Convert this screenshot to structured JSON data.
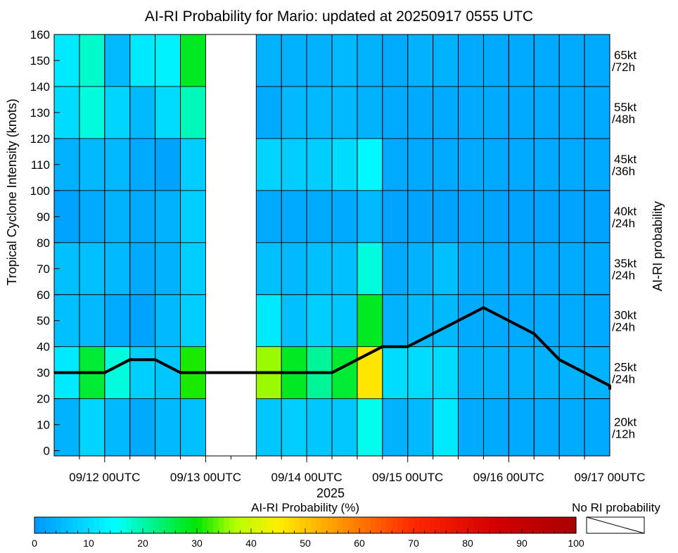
{
  "chart_data": {
    "type": "heatmap",
    "title": "AI-RI Probability for Mario: updated at 20250917 0555 UTC",
    "ylabel": "Tropical Cyclone Intensity (knots)",
    "xlabel": "2025",
    "right_label": "AI-RI probability",
    "ylim": [
      -2,
      160
    ],
    "yticks": [
      0,
      10,
      20,
      30,
      40,
      50,
      60,
      70,
      80,
      90,
      100,
      110,
      120,
      130,
      140,
      150,
      160
    ],
    "xticks": [
      "09/12 00UTC",
      "09/13 00UTC",
      "09/14 00UTC",
      "09/15 00UTC",
      "09/16 00UTC",
      "09/17 00UTC"
    ],
    "bands": [
      {
        "label": "20kt /12h",
        "line1": "20kt",
        "line2": "/12h",
        "lo": -2,
        "hi": 20
      },
      {
        "label": "25kt /24h",
        "line1": "25kt",
        "line2": "/24h",
        "lo": 20,
        "hi": 40
      },
      {
        "label": "30kt /24h",
        "line1": "30kt",
        "line2": "/24h",
        "lo": 40,
        "hi": 60
      },
      {
        "label": "35kt /24h",
        "line1": "35kt",
        "line2": "/24h",
        "lo": 60,
        "hi": 80
      },
      {
        "label": "40kt /24h",
        "line1": "40kt",
        "line2": "/24h",
        "lo": 80,
        "hi": 100
      },
      {
        "label": "45kt /36h",
        "line1": "45kt",
        "line2": "/36h",
        "lo": 100,
        "hi": 120
      },
      {
        "label": "55kt /48h",
        "line1": "55kt",
        "line2": "/48h",
        "lo": 120,
        "hi": 140
      },
      {
        "label": "65kt /72h",
        "line1": "65kt",
        "line2": "/72h",
        "lo": 140,
        "hi": 160
      }
    ],
    "time_axis": {
      "start_hour": -12,
      "end_hour": 120,
      "cell_hours": 6
    },
    "columns": [
      {
        "hour": -12,
        "values": [
          4,
          12,
          6,
          6,
          2,
          4,
          10,
          12
        ]
      },
      {
        "hour": -6,
        "values": [
          9,
          27,
          5,
          6,
          3,
          5,
          17,
          18
        ]
      },
      {
        "hour": 0,
        "values": [
          5,
          17,
          3,
          5,
          4,
          5,
          9,
          5
        ]
      },
      {
        "hour": 6,
        "values": [
          3,
          8,
          2,
          3,
          3,
          3,
          5,
          12
        ]
      },
      {
        "hour": 12,
        "values": [
          5,
          7,
          5,
          4,
          4,
          2,
          10,
          13
        ]
      },
      {
        "hour": 18,
        "values": [
          6,
          31,
          8,
          8,
          8,
          8,
          19,
          28
        ]
      },
      {
        "hour": 24,
        "values": null
      },
      {
        "hour": 30,
        "values": null
      },
      {
        "hour": 36,
        "values": [
          7,
          36,
          12,
          6,
          3,
          9,
          3,
          4
        ]
      },
      {
        "hour": 42,
        "values": [
          8,
          28,
          6,
          5,
          3,
          8,
          5,
          4
        ]
      },
      {
        "hour": 48,
        "values": [
          7,
          21,
          8,
          6,
          3,
          8,
          5,
          4
        ]
      },
      {
        "hour": 54,
        "values": [
          7,
          27,
          7,
          6,
          3,
          10,
          5,
          5
        ]
      },
      {
        "hour": 60,
        "values": [
          16,
          46,
          28,
          17,
          5,
          14,
          4,
          4
        ]
      },
      {
        "hour": 66,
        "values": [
          4,
          10,
          4,
          3,
          2,
          3,
          3,
          3
        ]
      },
      {
        "hour": 72,
        "values": [
          5,
          10,
          5,
          4,
          2,
          3,
          3,
          4
        ]
      },
      {
        "hour": 78,
        "values": [
          12,
          10,
          5,
          6,
          2,
          3,
          3,
          4
        ]
      },
      {
        "hour": 84,
        "values": [
          3,
          4,
          3,
          3,
          2,
          3,
          3,
          3
        ]
      },
      {
        "hour": 90,
        "values": [
          3,
          4,
          3,
          3,
          2,
          3,
          3,
          3
        ]
      },
      {
        "hour": 96,
        "values": [
          3,
          4,
          3,
          3,
          2,
          3,
          3,
          3
        ]
      },
      {
        "hour": 102,
        "values": [
          3,
          4,
          3,
          3,
          2,
          3,
          3,
          3
        ]
      },
      {
        "hour": 108,
        "values": [
          3,
          4,
          3,
          3,
          2,
          3,
          3,
          3
        ]
      },
      {
        "hour": 114,
        "values": [
          3,
          4,
          3,
          3,
          2,
          3,
          3,
          3
        ]
      }
    ],
    "intensity_line": {
      "hours": [
        -12,
        -6,
        0,
        6,
        12,
        18,
        24,
        30,
        36,
        42,
        48,
        54,
        60,
        66,
        72,
        78,
        84,
        90,
        96,
        102,
        108,
        114,
        120
      ],
      "knots": [
        30,
        30,
        30,
        35,
        35,
        30,
        30,
        30,
        30,
        30,
        30,
        30,
        35,
        40,
        40,
        45,
        50,
        55,
        50,
        45,
        35,
        30,
        25
      ]
    },
    "line_tail": {
      "hour": 120,
      "knots": 23.5
    },
    "colorbar": {
      "title": "AI-RI Probability (%)",
      "ticks": [
        0,
        10,
        20,
        30,
        40,
        50,
        60,
        70,
        80,
        90,
        100
      ],
      "no_ri_label": "No RI probability"
    },
    "colors": {
      "line": "#000000",
      "no_data": "#ffffff",
      "stops": [
        {
          "v": 0,
          "c": "#0096ff"
        },
        {
          "v": 15,
          "c": "#00ffff"
        },
        {
          "v": 30,
          "c": "#00e600"
        },
        {
          "v": 37,
          "c": "#b4ff00"
        },
        {
          "v": 45,
          "c": "#ffee00"
        },
        {
          "v": 55,
          "c": "#ffa000"
        },
        {
          "v": 70,
          "c": "#ff2800"
        },
        {
          "v": 85,
          "c": "#d20000"
        },
        {
          "v": 100,
          "c": "#aa0000"
        }
      ]
    }
  }
}
